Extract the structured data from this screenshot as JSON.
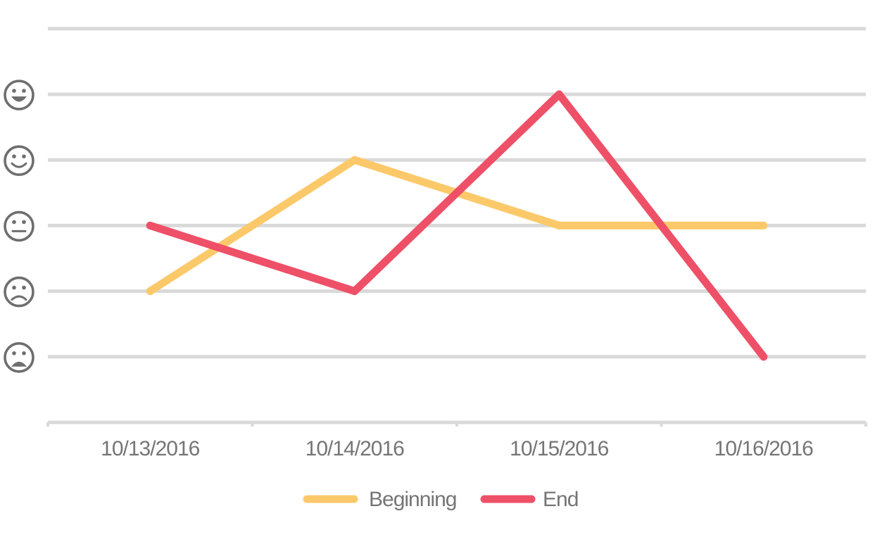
{
  "chart_data": {
    "type": "line",
    "categories": [
      "10/13/2016",
      "10/14/2016",
      "10/15/2016",
      "10/16/2016"
    ],
    "series": [
      {
        "name": "Beginning",
        "color": "#fcc96a",
        "values": [
          2,
          4,
          3,
          3
        ]
      },
      {
        "name": "End",
        "color": "#ee5068",
        "values": [
          3,
          2,
          5,
          1
        ]
      }
    ],
    "ylim": [
      0,
      6
    ],
    "y_ticks": [
      1,
      2,
      3,
      4,
      5
    ],
    "y_tick_icons": [
      "very-sad-face-icon",
      "sad-face-icon",
      "neutral-face-icon",
      "smiling-face-icon",
      "grinning-face-icon"
    ],
    "grid": true,
    "legend": "bottom-center",
    "gridline_color": "#d9d9d9",
    "icon_color": "#6e6e6e",
    "text_color": "#757575"
  }
}
